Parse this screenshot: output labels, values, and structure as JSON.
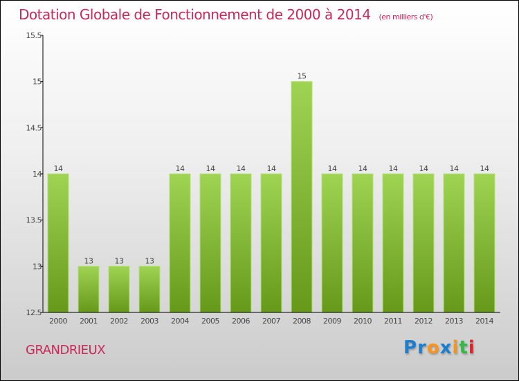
{
  "chart_data": {
    "type": "bar",
    "title": "Dotation Globale de Fonctionnement de 2000 à 2014",
    "unit": "(en milliers d'€)",
    "categories": [
      "2000",
      "2001",
      "2002",
      "2003",
      "2004",
      "2005",
      "2006",
      "2007",
      "2008",
      "2009",
      "2010",
      "2011",
      "2012",
      "2013",
      "2014"
    ],
    "values": [
      14,
      13,
      13,
      13,
      14,
      14,
      14,
      14,
      15,
      14,
      14,
      14,
      14,
      14,
      14
    ],
    "ylim": [
      12.5,
      15.5
    ],
    "yticks": [
      "12.5",
      "13",
      "13.5",
      "14",
      "14.5",
      "15",
      "15.5"
    ],
    "xlabel": "",
    "ylabel": "",
    "bar_color": "#8cc63f",
    "grid": false
  },
  "commune": "GRANDRIEUX",
  "logo": {
    "text": "Proxiti",
    "letters": [
      [
        "P",
        "#1a7fd0"
      ],
      [
        "r",
        "#1a7fd0"
      ],
      [
        "o",
        "#f7941d"
      ],
      [
        "x",
        "#1a7fd0"
      ],
      [
        "i",
        "#f7941d"
      ],
      [
        "t",
        "#39b54a"
      ],
      [
        "i",
        "#ed1c24"
      ]
    ]
  }
}
